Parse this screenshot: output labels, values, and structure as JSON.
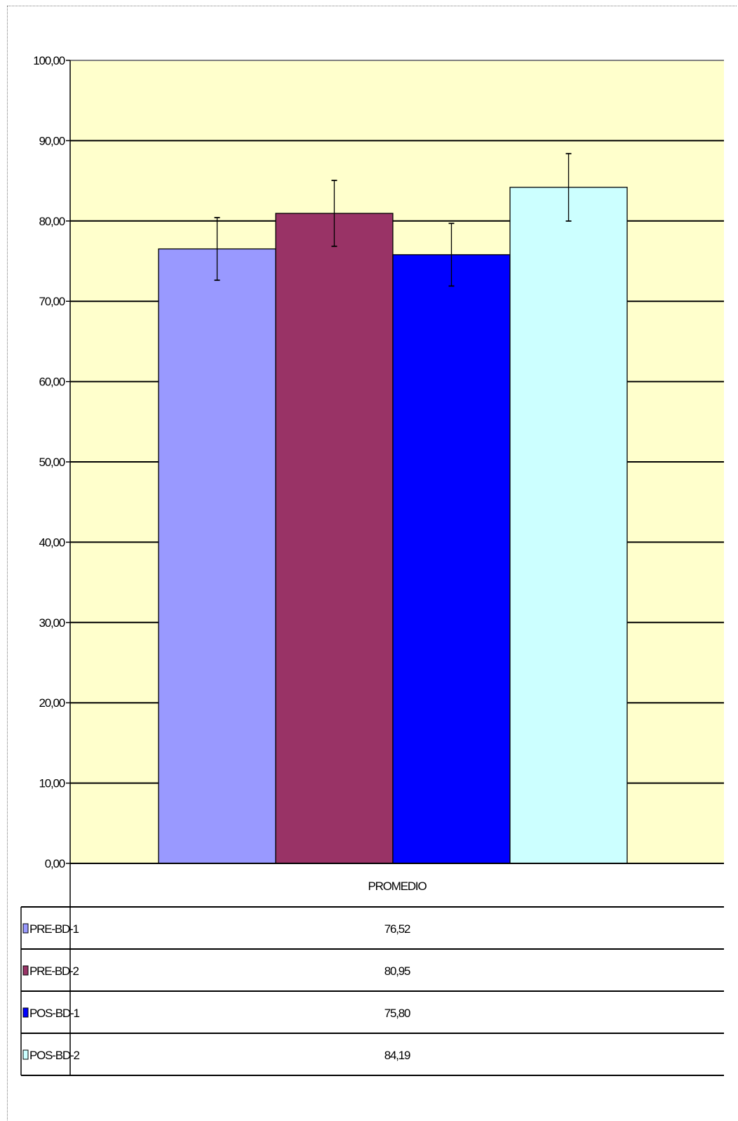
{
  "chart_data": {
    "type": "bar",
    "categories": [
      "PROMEDIO"
    ],
    "series": [
      {
        "name": "PRE-BD-1",
        "values": [
          76.52
        ],
        "value_label": "76,52",
        "error": 3.9,
        "color": "#9999ff"
      },
      {
        "name": "PRE-BD-2",
        "values": [
          80.95
        ],
        "value_label": "80,95",
        "error": 4.1,
        "color": "#993366"
      },
      {
        "name": "POS-BD-1",
        "values": [
          75.8
        ],
        "value_label": "75,80",
        "error": 3.9,
        "color": "#0000ff"
      },
      {
        "name": "POS-BD-2",
        "values": [
          84.19
        ],
        "value_label": "84,19",
        "error": 4.2,
        "color": "#ccffff"
      }
    ],
    "ylim": [
      0,
      100
    ],
    "yticks": [
      0,
      10,
      20,
      30,
      40,
      50,
      60,
      70,
      80,
      90,
      100
    ],
    "ytick_labels": [
      "0,00",
      "10,00",
      "20,00",
      "30,00",
      "40,00",
      "50,00",
      "60,00",
      "70,00",
      "80,00",
      "90,00",
      "100,00"
    ],
    "grid": true,
    "legend": "data-table-below",
    "plot_background": "#ffffcc",
    "title": "",
    "xlabel": "",
    "ylabel": ""
  }
}
